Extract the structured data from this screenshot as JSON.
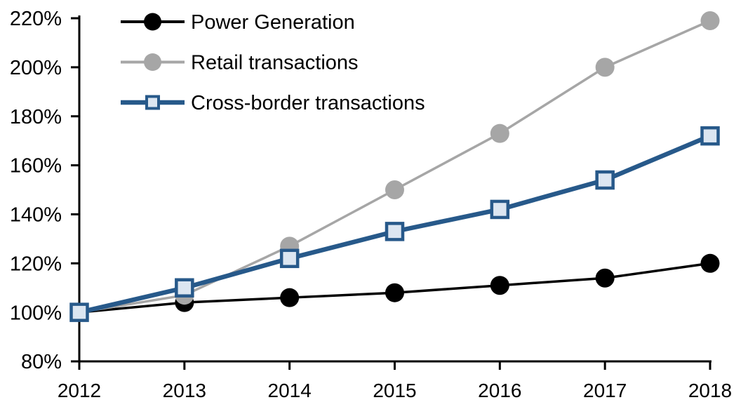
{
  "chart_data": {
    "type": "line",
    "title": "",
    "xlabel": "",
    "ylabel": "",
    "categories": [
      "2012",
      "2013",
      "2014",
      "2015",
      "2016",
      "2017",
      "2018"
    ],
    "series": [
      {
        "name": "Power Generation",
        "values": [
          100,
          104,
          106,
          108,
          111,
          114,
          120
        ],
        "color": "#000000",
        "marker": "circle",
        "marker_fill": "#000000",
        "marker_border": "#000000"
      },
      {
        "name": "Retail transactions",
        "values": [
          100,
          107,
          127,
          150,
          173,
          200,
          219
        ],
        "color": "#A6A6A6",
        "marker": "circle",
        "marker_fill": "#A6A6A6",
        "marker_border": "#A6A6A6"
      },
      {
        "name": "Cross-border transactions",
        "values": [
          100,
          110,
          122,
          133,
          142,
          154,
          172
        ],
        "color": "#27598A",
        "marker": "square",
        "marker_fill": "#DCE6F1",
        "marker_border": "#27598A"
      }
    ],
    "ylim": [
      80,
      220
    ],
    "y_ticks": [
      80,
      100,
      120,
      140,
      160,
      180,
      200,
      220
    ],
    "y_tick_labels": [
      "80%",
      "100%",
      "120%",
      "140%",
      "160%",
      "180%",
      "200%",
      "220%"
    ],
    "x_tick_labels": [
      "2012",
      "2013",
      "2014",
      "2015",
      "2016",
      "2017",
      "2018"
    ],
    "grid": false,
    "legend_position": "top-left-inside",
    "axis_color": "#000000"
  }
}
